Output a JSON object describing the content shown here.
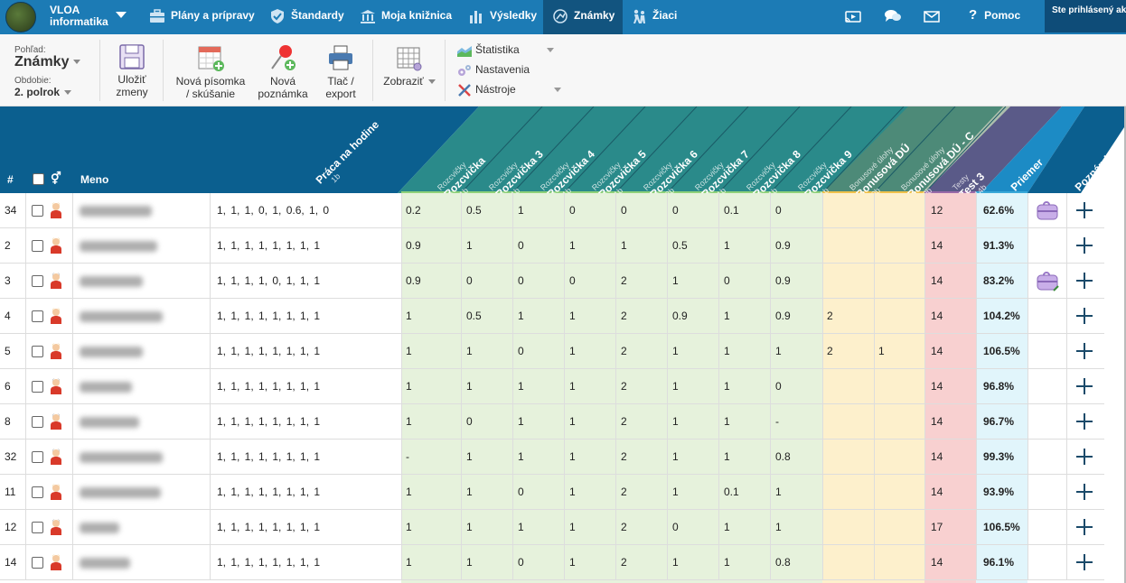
{
  "brand": {
    "line1": "VLOA",
    "line2": "informatika"
  },
  "nav": [
    {
      "label": "Plány a prípravy",
      "icon": "briefcase-icon"
    },
    {
      "label": "Štandardy",
      "icon": "shield-check-icon"
    },
    {
      "label": "Moja knižnica",
      "icon": "library-icon"
    },
    {
      "label": "Výsledky",
      "icon": "bar-chart-icon"
    },
    {
      "label": "Známky",
      "icon": "grades-icon"
    },
    {
      "label": "Žiaci",
      "icon": "students-icon"
    }
  ],
  "help_label": "Pomoc",
  "signed_in": "Ste prihlásený ak",
  "toolbar": {
    "view_label": "Pohľad:",
    "view_value": "Známky",
    "period_label": "Obdobie:",
    "period_value": "2. polrok",
    "save": "Uložiť zmeny",
    "save_l1": "Uložiť",
    "save_l2": "zmeny",
    "new_test_l1": "Nová písomka",
    "new_test_l2": "/ skúšanie",
    "new_note_l1": "Nová",
    "new_note_l2": "poznámka",
    "print_l1": "Tlač /",
    "print_l2": "export",
    "show": "Zobraziť",
    "menu": [
      "Štatistika",
      "Nastavenia",
      "Nástroje"
    ]
  },
  "header": {
    "num": "#",
    "name": "Meno",
    "work_title": "Práca na hodine",
    "work_sub": "1b",
    "columns": [
      {
        "cat": "Rozcvičky",
        "name": "Rozcvička",
        "pts": "1b"
      },
      {
        "cat": "Rozcvičky",
        "name": "Rozcvička 3",
        "pts": "1b"
      },
      {
        "cat": "Rozcvičky",
        "name": "Rozcvička 4",
        "pts": "1b"
      },
      {
        "cat": "Rozcvičky",
        "name": "Rozcvička 5",
        "pts": "1b"
      },
      {
        "cat": "Rozcvičky",
        "name": "Rozcvička 6",
        "pts": "2b"
      },
      {
        "cat": "Rozcvičky",
        "name": "Rozcvička 7",
        "pts": "1b"
      },
      {
        "cat": "Rozcvičky",
        "name": "Rozcvička 8",
        "pts": "1b"
      },
      {
        "cat": "Rozcvičky",
        "name": "Rozcvička 9",
        "pts": "1b"
      },
      {
        "cat": "Bonusové úlohy",
        "name": "Bonusová DÚ",
        "pts": "0b"
      },
      {
        "cat": "Bonusové úlohy",
        "name": "Bonusová DÚ - C",
        "pts": "0b"
      },
      {
        "cat": "Testy",
        "name": "Test 3",
        "pts": "14b"
      }
    ],
    "avg": "Priemer",
    "notes": "Poznámky"
  },
  "rows": [
    {
      "num": "34",
      "work": "1, 1, 1, 0, 1, 0.6, 1, 0",
      "vals": [
        "0.2",
        "0.5",
        "1",
        "0",
        "0",
        "0",
        "0.1",
        "0",
        "",
        "",
        "12"
      ],
      "avg": "62.6%",
      "gender": "f",
      "bag": true,
      "pencil": false
    },
    {
      "num": "2",
      "work": "1, 1, 1, 1, 1, 1, 1, 1",
      "vals": [
        "0.9",
        "1",
        "0",
        "1",
        "1",
        "0.5",
        "1",
        "0.9",
        "",
        "",
        "14"
      ],
      "avg": "91.3%",
      "gender": "f",
      "bag": false,
      "pencil": false
    },
    {
      "num": "3",
      "work": "1, 1, 1, 1, 0, 1, 1, 1",
      "vals": [
        "0.9",
        "0",
        "0",
        "0",
        "2",
        "1",
        "0",
        "0.9",
        "",
        "",
        "14"
      ],
      "avg": "83.2%",
      "gender": "m",
      "bag": true,
      "pencil": true
    },
    {
      "num": "4",
      "work": "1, 1, 1, 1, 1, 1, 1, 1",
      "vals": [
        "1",
        "0.5",
        "1",
        "1",
        "2",
        "0.9",
        "1",
        "0.9",
        "2",
        "",
        "14"
      ],
      "avg": "104.2%",
      "gender": "f",
      "bag": false,
      "pencil": false
    },
    {
      "num": "5",
      "work": "1, 1, 1, 1, 1, 1, 1, 1",
      "vals": [
        "1",
        "1",
        "0",
        "1",
        "2",
        "1",
        "1",
        "1",
        "2",
        "1",
        "14"
      ],
      "avg": "106.5%",
      "gender": "f",
      "bag": false,
      "pencil": false
    },
    {
      "num": "6",
      "work": "1, 1, 1, 1, 1, 1, 1, 1",
      "vals": [
        "1",
        "1",
        "1",
        "1",
        "2",
        "1",
        "1",
        "0",
        "",
        "",
        "14"
      ],
      "avg": "96.8%",
      "gender": "m",
      "bag": false,
      "pencil": false
    },
    {
      "num": "8",
      "work": "1, 1, 1, 1, 1, 1, 1, 1",
      "vals": [
        "1",
        "0",
        "1",
        "1",
        "2",
        "1",
        "1",
        "-",
        "",
        "",
        "14"
      ],
      "avg": "96.7%",
      "gender": "m",
      "bag": false,
      "pencil": false
    },
    {
      "num": "32",
      "work": "1, 1, 1, 1, 1, 1, 1, 1",
      "vals": [
        "-",
        "1",
        "1",
        "1",
        "2",
        "1",
        "1",
        "0.8",
        "",
        "",
        "14"
      ],
      "avg": "99.3%",
      "gender": "m",
      "bag": false,
      "pencil": false
    },
    {
      "num": "11",
      "work": "1, 1, 1, 1, 1, 1, 1, 1",
      "vals": [
        "1",
        "1",
        "0",
        "1",
        "2",
        "1",
        "0.1",
        "1",
        "",
        "",
        "14"
      ],
      "avg": "93.9%",
      "gender": "f",
      "bag": false,
      "pencil": false
    },
    {
      "num": "12",
      "work": "1, 1, 1, 1, 1, 1, 1, 1",
      "vals": [
        "1",
        "1",
        "1",
        "1",
        "2",
        "0",
        "1",
        "1",
        "",
        "",
        "17"
      ],
      "avg": "106.5%",
      "gender": "m",
      "bag": false,
      "pencil": false
    },
    {
      "num": "14",
      "work": "1, 1, 1, 1, 1, 1, 1, 1",
      "vals": [
        "1",
        "1",
        "0",
        "1",
        "2",
        "1",
        "1",
        "0.8",
        "",
        "",
        "14"
      ],
      "avg": "96.1%",
      "gender": "f",
      "bag": false,
      "pencil": false
    }
  ],
  "colors": {
    "nav": "#1c7bb5",
    "nav_active": "#12547f",
    "warmup": "#e6f2dc",
    "bonus": "#fdf0cc",
    "tests": "#f8d0d0",
    "avg": "#e1f5fb"
  }
}
